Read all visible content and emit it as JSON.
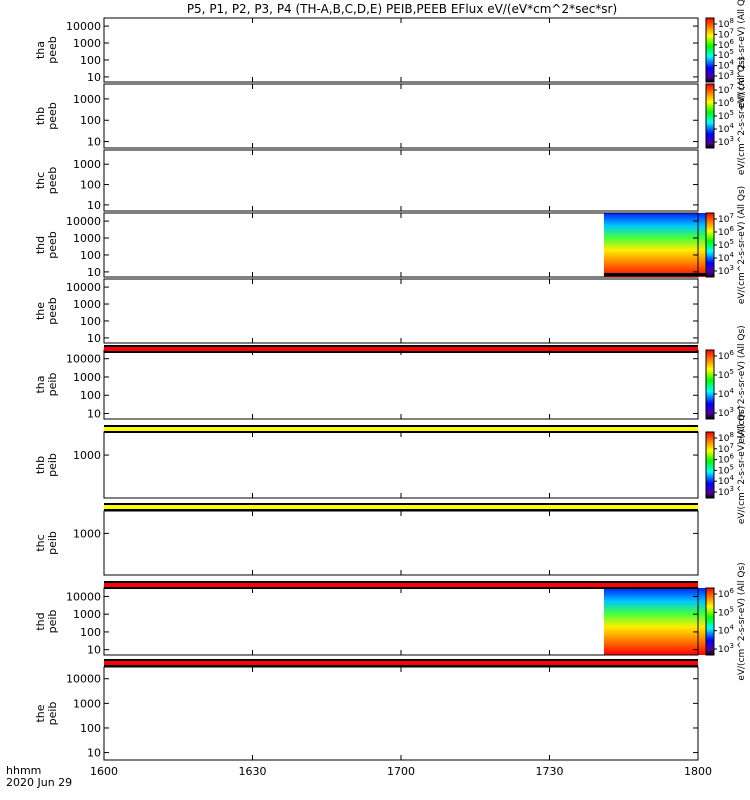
{
  "chart_data": {
    "type": "heatmap",
    "title": "P5, P1, P2, P3, P4 (TH-A,B,C,D,E) PEIB,PEEB EFlux eV/(eV*cm^2*sec*sr)",
    "x": {
      "label": "hhmm",
      "date": "2020 Jun 29",
      "range": [
        1600,
        1800
      ],
      "ticks": [
        "1600",
        "1630",
        "1700",
        "1730",
        "1800"
      ]
    },
    "y_scale": "log",
    "panels": [
      {
        "label_top": "tha",
        "label_bottom": "peeb",
        "yticks": [
          "10",
          "100",
          "1000",
          "10000"
        ],
        "ylim": [
          5,
          30000
        ],
        "data_spans": [
          [
            1693,
            1711
          ]
        ],
        "bottom_line": [
          1693,
          1711
        ],
        "colorbar": {
          "ticks": [
            "10^3",
            "10^4",
            "10^5",
            "10^6",
            "10^7",
            "10^8"
          ],
          "unit": "eV/(cm^2-s-sr-eV) (All Qs)"
        }
      },
      {
        "label_top": "thb",
        "label_bottom": "peeb",
        "yticks": [
          "10",
          "100",
          "1000"
        ],
        "ylim": [
          5,
          5000
        ],
        "data_spans": [],
        "colorbar": {
          "ticks": [
            "10^3",
            "10^4",
            "10^5",
            "10^6",
            "10^7"
          ],
          "unit": "eV/(cm^2-s-sr-eV) (All Qs)"
        }
      },
      {
        "label_top": "thc",
        "label_bottom": "peeb",
        "yticks": [
          "10",
          "100",
          "1000"
        ],
        "ylim": [
          5,
          5000
        ],
        "data_spans": [],
        "colorbar": null
      },
      {
        "label_top": "thd",
        "label_bottom": "peeb",
        "yticks": [
          "10",
          "100",
          "1000",
          "10000"
        ],
        "ylim": [
          5,
          30000
        ],
        "data_spans": [
          [
            1741,
            1763
          ]
        ],
        "bottom_line": [
          1741,
          1763
        ],
        "colorbar": {
          "ticks": [
            "10^3",
            "10^4",
            "10^5",
            "10^6",
            "10^7"
          ],
          "unit": "eV/(cm^2-s-sr-eV) (All Qs)"
        }
      },
      {
        "label_top": "the",
        "label_bottom": "peeb",
        "yticks": [
          "10",
          "100",
          "1000",
          "10000"
        ],
        "ylim": [
          5,
          30000
        ],
        "data_spans": [],
        "colorbar": null
      },
      {
        "label_top": "tha",
        "label_bottom": "peib",
        "yticks": [
          "10",
          "100",
          "1000",
          "10000"
        ],
        "ylim": [
          5,
          30000
        ],
        "data_spans": [
          [
            1693,
            1711
          ]
        ],
        "top_line": [
          1693,
          1711
        ],
        "colorbar": {
          "ticks": [
            "10^3",
            "10^4",
            "10^5",
            "10^6"
          ],
          "unit": "eV/(cm^2-s-sr-eV) (All Qs)"
        }
      },
      {
        "label_top": "thb",
        "label_bottom": "peib",
        "yticks": [
          "1000"
        ],
        "ylim": [
          50,
          5000
        ],
        "data_spans": [],
        "colorbar": {
          "ticks": [
            "10^3",
            "10^4",
            "10^5",
            "10^6",
            "10^7",
            "10^8"
          ],
          "unit": "eV/(cm^2-s-sr-eV) (All Qs)"
        }
      },
      {
        "label_top": "thc",
        "label_bottom": "peib",
        "yticks": [
          "1000"
        ],
        "ylim": [
          50,
          5000
        ],
        "data_spans": [],
        "colorbar": null
      },
      {
        "label_top": "thd",
        "label_bottom": "peib",
        "yticks": [
          "10",
          "100",
          "1000",
          "10000"
        ],
        "ylim": [
          5,
          30000
        ],
        "data_spans": [
          [
            1741,
            1763
          ]
        ],
        "colorbar": {
          "ticks": [
            "10^3",
            "10^4",
            "10^5",
            "10^6"
          ],
          "unit": "eV/(cm^2-s-sr-eV) (All Qs)"
        }
      },
      {
        "label_top": "the",
        "label_bottom": "peib",
        "yticks": [
          "10",
          "100",
          "1000",
          "10000"
        ],
        "ylim": [
          5,
          30000
        ],
        "data_spans": [],
        "colorbar": null
      }
    ],
    "status_bars": [
      {
        "after_panel": 5,
        "color": "#ff0000"
      },
      {
        "after_panel": 6,
        "color": "#ffff00"
      },
      {
        "after_panel": 7,
        "color": "#ffff00"
      },
      {
        "after_panel": 8,
        "color": "#ff0000"
      },
      {
        "after_panel": 9,
        "color": "#ff0000"
      }
    ]
  }
}
